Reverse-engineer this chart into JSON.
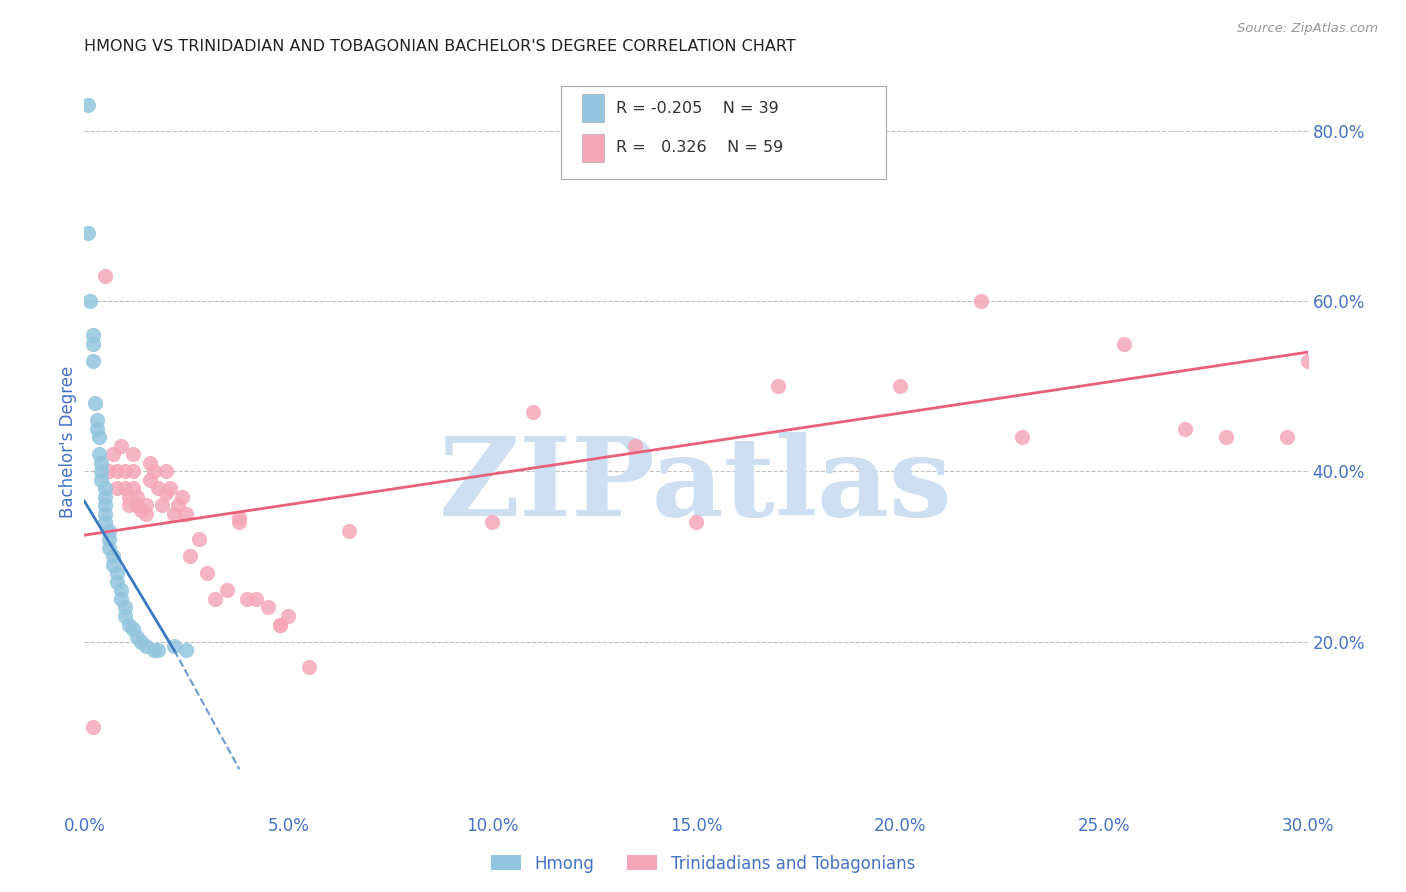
{
  "title": "HMONG VS TRINIDADIAN AND TOBAGONIAN BACHELOR'S DEGREE CORRELATION CHART",
  "source": "Source: ZipAtlas.com",
  "ylabel": "Bachelor's Degree",
  "watermark": "ZIPatlas",
  "x_tick_labels": [
    "0.0%",
    "5.0%",
    "10.0%",
    "15.0%",
    "20.0%",
    "25.0%",
    "30.0%"
  ],
  "x_tick_values": [
    0.0,
    5.0,
    10.0,
    15.0,
    20.0,
    25.0,
    30.0
  ],
  "y_tick_labels": [
    "20.0%",
    "40.0%",
    "60.0%",
    "80.0%"
  ],
  "y_tick_values": [
    20.0,
    40.0,
    60.0,
    80.0
  ],
  "xlim": [
    0.0,
    30.0
  ],
  "ylim": [
    0.0,
    87.0
  ],
  "legend_labels": [
    "Hmong",
    "Trinidadians and Tobagonians"
  ],
  "legend_R_hmong": "-0.205",
  "legend_N_hmong": "39",
  "legend_R_trin": "0.326",
  "legend_N_trin": "59",
  "hmong_color": "#92c5de",
  "trin_color": "#f4a7b9",
  "hmong_line_color": "#3a7abf",
  "trin_line_color": "#e8607a",
  "grid_color": "#c0c0c0",
  "title_color": "#222222",
  "axis_label_color": "#4472c4",
  "tick_color": "#4472c4",
  "watermark_color": "#cddff0",
  "hmong_x": [
    0.1,
    0.1,
    0.15,
    0.2,
    0.2,
    0.2,
    0.25,
    0.3,
    0.3,
    0.35,
    0.35,
    0.4,
    0.4,
    0.4,
    0.5,
    0.5,
    0.5,
    0.5,
    0.5,
    0.6,
    0.6,
    0.6,
    0.7,
    0.7,
    0.8,
    0.8,
    0.9,
    0.9,
    1.0,
    1.0,
    1.1,
    1.2,
    1.3,
    1.4,
    1.5,
    1.7,
    1.8,
    2.2,
    2.5
  ],
  "hmong_y": [
    83.0,
    68.0,
    60.0,
    56.0,
    55.0,
    53.0,
    48.0,
    46.0,
    45.0,
    44.0,
    42.0,
    41.0,
    40.0,
    39.0,
    38.0,
    37.0,
    36.0,
    35.0,
    34.0,
    33.0,
    32.0,
    31.0,
    30.0,
    29.0,
    28.0,
    27.0,
    26.0,
    25.0,
    24.0,
    23.0,
    22.0,
    21.5,
    20.5,
    20.0,
    19.5,
    19.0,
    19.0,
    19.5,
    19.0
  ],
  "trin_x": [
    0.2,
    0.5,
    0.6,
    0.7,
    0.8,
    0.8,
    0.9,
    1.0,
    1.0,
    1.1,
    1.1,
    1.2,
    1.2,
    1.2,
    1.3,
    1.3,
    1.4,
    1.5,
    1.5,
    1.6,
    1.6,
    1.7,
    1.8,
    1.9,
    2.0,
    2.0,
    2.1,
    2.2,
    2.3,
    2.4,
    2.5,
    2.6,
    2.8,
    3.0,
    3.2,
    3.5,
    3.8,
    3.8,
    4.0,
    4.2,
    4.5,
    4.8,
    4.8,
    5.0,
    5.5,
    6.5,
    10.0,
    11.0,
    13.5,
    15.0,
    17.0,
    20.0,
    22.0,
    23.0,
    25.5,
    27.0,
    28.0,
    29.5,
    30.0
  ],
  "trin_y": [
    10.0,
    63.0,
    40.0,
    42.0,
    40.0,
    38.0,
    43.0,
    40.0,
    38.0,
    37.0,
    36.0,
    42.0,
    40.0,
    38.0,
    37.0,
    36.0,
    35.5,
    36.0,
    35.0,
    41.0,
    39.0,
    40.0,
    38.0,
    36.0,
    40.0,
    37.5,
    38.0,
    35.0,
    36.0,
    37.0,
    35.0,
    30.0,
    32.0,
    28.0,
    25.0,
    26.0,
    34.0,
    34.5,
    25.0,
    25.0,
    24.0,
    22.0,
    22.0,
    23.0,
    17.0,
    33.0,
    34.0,
    47.0,
    43.0,
    34.0,
    50.0,
    50.0,
    60.0,
    44.0,
    55.0,
    45.0,
    44.0,
    44.0,
    53.0
  ],
  "hmong_line_x0": 0.0,
  "hmong_line_y0": 36.5,
  "hmong_line_x1": 2.2,
  "hmong_line_y1": 19.0,
  "hmong_dash_x1": 3.8,
  "hmong_dash_y1": 5.0,
  "trin_line_x0": 0.0,
  "trin_line_y0": 32.5,
  "trin_line_x1": 30.0,
  "trin_line_y1": 54.0
}
